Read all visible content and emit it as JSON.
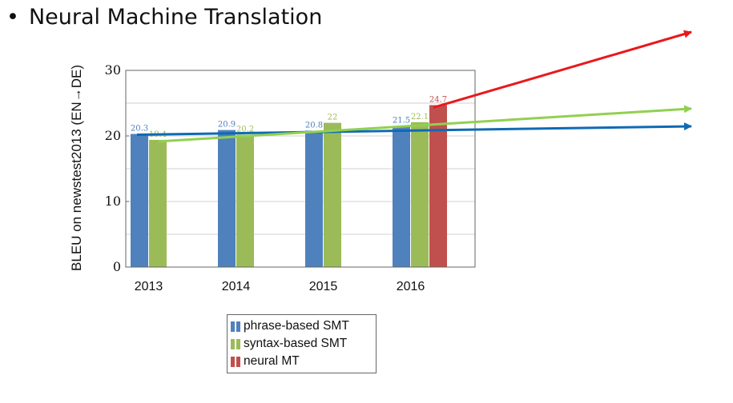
{
  "title": "Neural Machine Translation",
  "colors": {
    "phrase": "#4f81bd",
    "syntax": "#9bbb59",
    "neural": "#c0504d",
    "arrow_red": "#e8191c",
    "arrow_green": "#92d050",
    "arrow_blue": "#0f6ab4"
  },
  "chart_data": {
    "type": "bar",
    "title": "",
    "xlabel": "",
    "ylabel": "BLEU on newstest2013 (EN→DE)",
    "categories": [
      "2013",
      "2014",
      "2015",
      "2016"
    ],
    "ylim": [
      0,
      30
    ],
    "yticks": [
      0,
      10,
      20,
      30
    ],
    "grid": true,
    "legend_position": "below",
    "series": [
      {
        "name": "phrase-based SMT",
        "color": "#4f81bd",
        "values": [
          20.3,
          20.9,
          20.8,
          21.5
        ],
        "labels": [
          "20.3",
          "20.9",
          "20.8",
          "21.5"
        ]
      },
      {
        "name": "syntax-based SMT",
        "color": "#9bbb59",
        "values": [
          19.4,
          20.2,
          22,
          22.1
        ],
        "labels": [
          "19.4",
          "20.2",
          "22",
          "22.1"
        ]
      },
      {
        "name": "neural MT",
        "color": "#c0504d",
        "values": [
          null,
          null,
          null,
          24.7
        ],
        "labels": [
          "",
          "",
          "",
          "24.7"
        ]
      }
    ],
    "trend_arrows": [
      {
        "series": "neural MT",
        "color": "#e8191c"
      },
      {
        "series": "syntax-based SMT",
        "color": "#92d050"
      },
      {
        "series": "phrase-based SMT",
        "color": "#0f6ab4"
      }
    ]
  }
}
